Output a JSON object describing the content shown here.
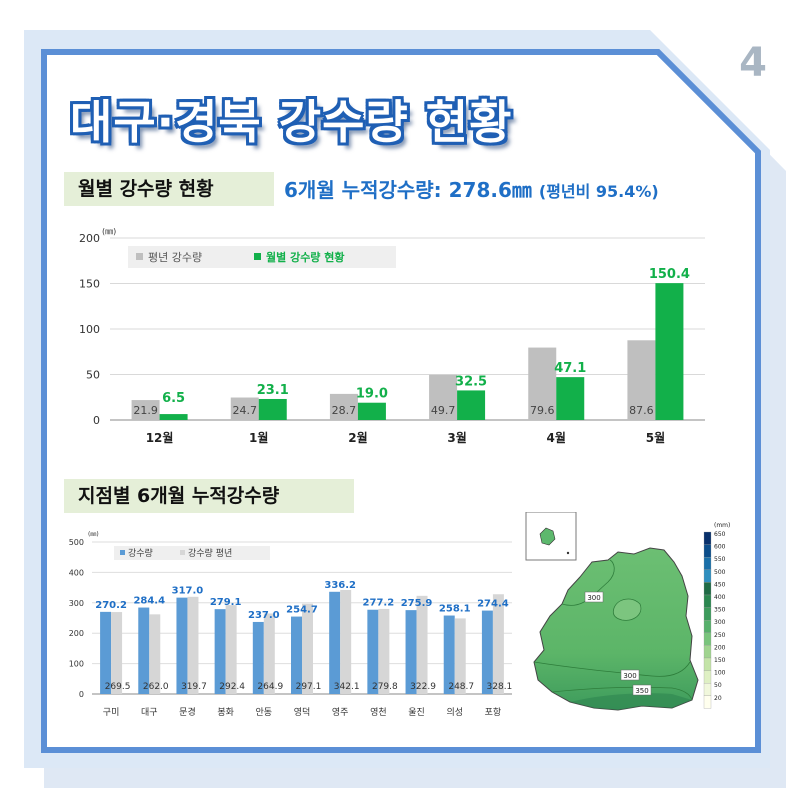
{
  "page_number": "4",
  "title": "대구·경북 강수량 현황",
  "section1": {
    "title": "월별 강수량 현황",
    "summary_main": "6개월 누적강수량: 278.6㎜",
    "summary_suffix": "(평년비 95.4%)"
  },
  "section2": {
    "title": "지점별 6개월 누적강수량"
  },
  "colors": {
    "frame_blue": "#5b8fd6",
    "frame_light": "#dce8f6",
    "title_blue": "#1f5fb4",
    "green": "#12b04a",
    "gray": "#bfbfbf",
    "blue_bar": "#5b9bd5",
    "light_gray": "#d6d6d6",
    "label_blue": "#1f6fc6"
  },
  "chart_data": [
    {
      "type": "bar",
      "unit": "(㎜)",
      "categories": [
        "12월",
        "1월",
        "2월",
        "3월",
        "4월",
        "5월"
      ],
      "series": [
        {
          "name": "평년 강수량",
          "values": [
            21.9,
            24.7,
            28.7,
            49.7,
            79.6,
            87.6
          ]
        },
        {
          "name": "월별 강수량 현황",
          "values": [
            6.5,
            23.1,
            19.0,
            32.5,
            47.1,
            150.4
          ]
        }
      ],
      "ylim": [
        0,
        200
      ],
      "yticks": [
        0,
        50,
        100,
        150,
        200
      ],
      "grid": true,
      "legend": "top-left"
    },
    {
      "type": "bar",
      "unit": "(㎜)",
      "categories": [
        "구미",
        "대구",
        "문경",
        "봉화",
        "안동",
        "영덕",
        "영주",
        "영천",
        "울진",
        "의성",
        "포항"
      ],
      "series": [
        {
          "name": "강수량",
          "values": [
            270.2,
            284.4,
            317.0,
            279.1,
            237.0,
            254.7,
            336.2,
            277.2,
            275.9,
            258.1,
            274.4
          ]
        },
        {
          "name": "강수량 평년",
          "values": [
            269.5,
            262.0,
            319.7,
            292.4,
            264.9,
            297.1,
            342.1,
            279.8,
            322.9,
            248.7,
            328.1
          ]
        }
      ],
      "ylim": [
        0,
        500
      ],
      "yticks": [
        0,
        100,
        200,
        300,
        400,
        500
      ],
      "grid": true,
      "legend": "top-left"
    }
  ],
  "map": {
    "legend_unit": "(mm)",
    "legend_values": [
      "650",
      "600",
      "550",
      "500",
      "450",
      "400",
      "350",
      "300",
      "250",
      "200",
      "150",
      "100",
      "50",
      "20"
    ],
    "legend_colors": [
      "#08306b",
      "#0b4d8a",
      "#1a6fa8",
      "#2f8fbf",
      "#1f6b45",
      "#2b8750",
      "#3d9b5c",
      "#57b06b",
      "#79c47c",
      "#a0d48f",
      "#c4e4a8",
      "#dff0c4",
      "#f1f8dc",
      "#ffffee"
    ],
    "contour_labels": [
      "300",
      "300",
      "350"
    ]
  }
}
